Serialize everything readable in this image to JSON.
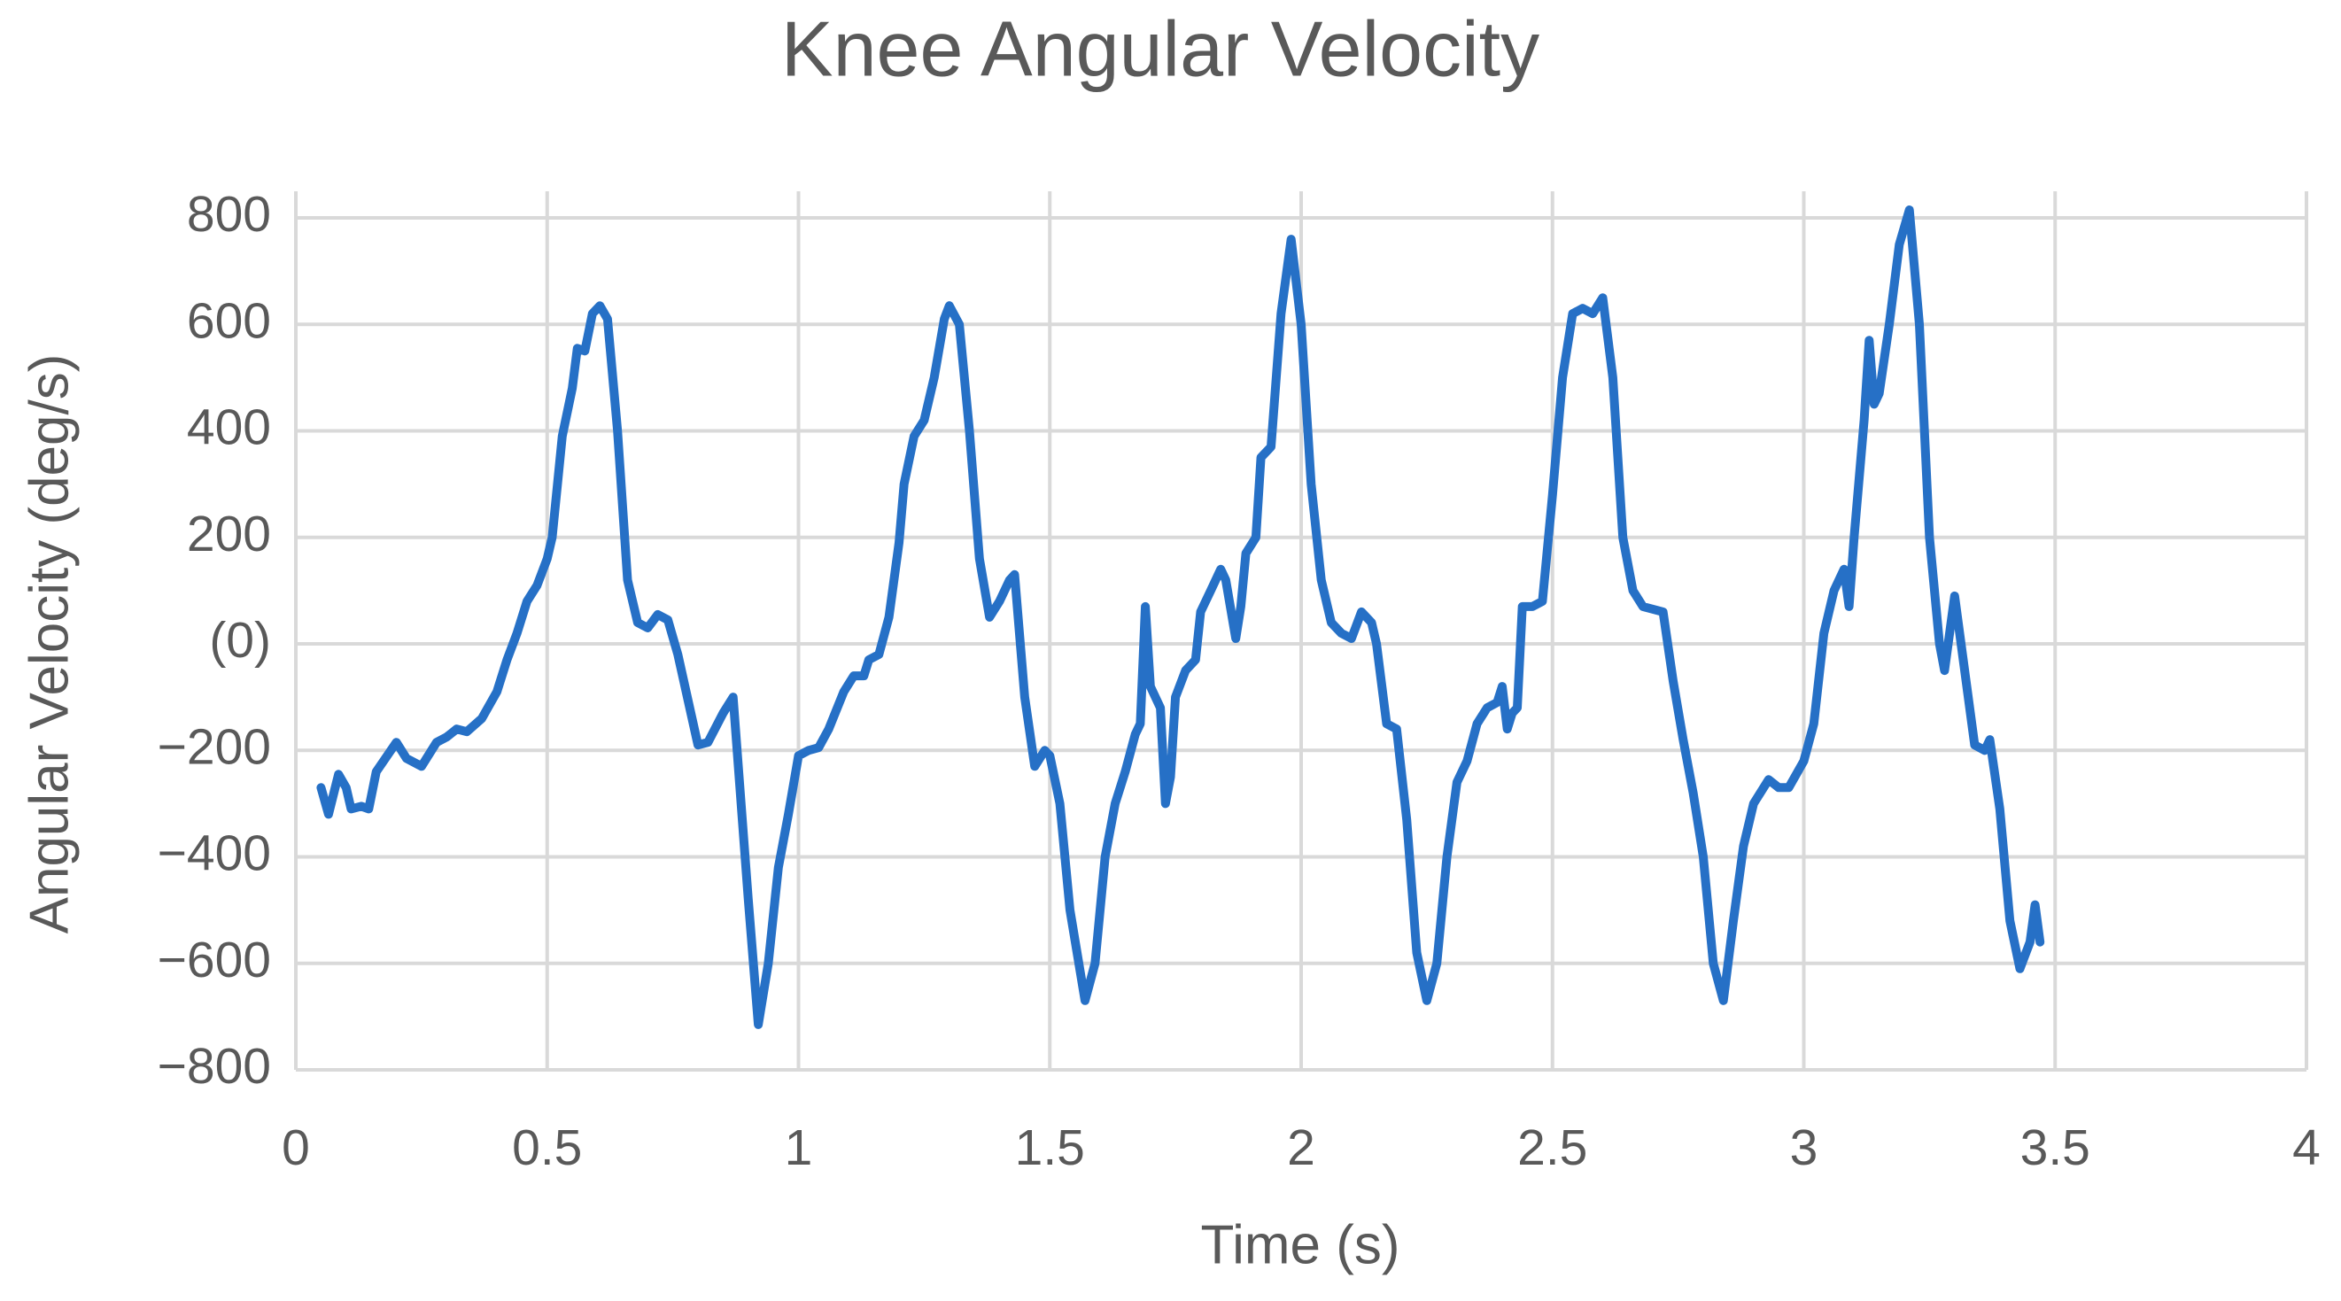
{
  "chart_data": {
    "type": "line",
    "title": "Knee Angular Velocity",
    "x_label": "Time (s)",
    "y_label": "Angular Velocity (deg/s)",
    "xlim": [
      0,
      4
    ],
    "xticks": [
      0,
      0.5,
      1,
      1.5,
      2,
      2.5,
      3,
      3.5,
      4
    ],
    "ylim": [
      -800,
      800
    ],
    "yticks": [
      {
        "value": -800,
        "label": "−800"
      },
      {
        "value": -600,
        "label": "−600"
      },
      {
        "value": -400,
        "label": "−400"
      },
      {
        "value": -200,
        "label": "−200"
      },
      {
        "value": 0,
        "label": "(0)"
      },
      200,
      400,
      600,
      800
    ],
    "grid": true,
    "series": [
      {
        "color": "#2670c6",
        "x": [
          0.05,
          0.065,
          0.085,
          0.1,
          0.11,
          0.13,
          0.145,
          0.16,
          0.2,
          0.22,
          0.25,
          0.28,
          0.3,
          0.32,
          0.34,
          0.37,
          0.4,
          0.42,
          0.44,
          0.46,
          0.48,
          0.5,
          0.51,
          0.53,
          0.55,
          0.56,
          0.575,
          0.59,
          0.605,
          0.62,
          0.64,
          0.66,
          0.68,
          0.7,
          0.72,
          0.74,
          0.76,
          0.8,
          0.82,
          0.85,
          0.87,
          0.9,
          0.92,
          0.94,
          0.96,
          0.98,
          1.0,
          1.02,
          1.04,
          1.06,
          1.09,
          1.11,
          1.13,
          1.14,
          1.16,
          1.18,
          1.2,
          1.21,
          1.23,
          1.25,
          1.27,
          1.29,
          1.3,
          1.32,
          1.34,
          1.36,
          1.38,
          1.4,
          1.42,
          1.43,
          1.45,
          1.47,
          1.49,
          1.5,
          1.52,
          1.54,
          1.57,
          1.59,
          1.61,
          1.63,
          1.65,
          1.67,
          1.68,
          1.69,
          1.7,
          1.72,
          1.73,
          1.74,
          1.75,
          1.77,
          1.79,
          1.8,
          1.82,
          1.84,
          1.85,
          1.87,
          1.88,
          1.89,
          1.91,
          1.92,
          1.94,
          1.96,
          1.98,
          2.0,
          2.02,
          2.04,
          2.06,
          2.08,
          2.1,
          2.12,
          2.14,
          2.15,
          2.17,
          2.19,
          2.21,
          2.23,
          2.25,
          2.27,
          2.29,
          2.31,
          2.33,
          2.35,
          2.37,
          2.39,
          2.4,
          2.41,
          2.42,
          2.43,
          2.44,
          2.46,
          2.48,
          2.5,
          2.52,
          2.54,
          2.56,
          2.58,
          2.6,
          2.62,
          2.64,
          2.66,
          2.68,
          2.7,
          2.72,
          2.74,
          2.76,
          2.78,
          2.8,
          2.82,
          2.84,
          2.86,
          2.88,
          2.9,
          2.93,
          2.95,
          2.97,
          3.0,
          3.02,
          3.04,
          3.06,
          3.08,
          3.09,
          3.1,
          3.12,
          3.13,
          3.14,
          3.15,
          3.17,
          3.19,
          3.21,
          3.23,
          3.25,
          3.27,
          3.28,
          3.3,
          3.32,
          3.34,
          3.36,
          3.37,
          3.39,
          3.41,
          3.43,
          3.45,
          3.46,
          3.47
        ],
        "values": [
          -270,
          -320,
          -245,
          -270,
          -310,
          -305,
          -310,
          -240,
          -185,
          -215,
          -230,
          -185,
          -175,
          -160,
          -165,
          -140,
          -90,
          -30,
          20,
          80,
          110,
          160,
          200,
          390,
          480,
          555,
          550,
          620,
          635,
          610,
          400,
          120,
          40,
          30,
          55,
          45,
          -20,
          -190,
          -185,
          -130,
          -100,
          -480,
          -715,
          -600,
          -420,
          -320,
          -210,
          -200,
          -195,
          -160,
          -90,
          -60,
          -60,
          -30,
          -20,
          50,
          190,
          300,
          390,
          420,
          500,
          610,
          635,
          600,
          400,
          160,
          50,
          80,
          120,
          130,
          -100,
          -230,
          -200,
          -210,
          -300,
          -500,
          -670,
          -600,
          -400,
          -300,
          -240,
          -170,
          -150,
          70,
          -80,
          -120,
          -300,
          -250,
          -100,
          -50,
          -30,
          60,
          100,
          140,
          120,
          10,
          70,
          170,
          200,
          350,
          370,
          620,
          760,
          600,
          300,
          120,
          40,
          20,
          10,
          60,
          40,
          0,
          -150,
          -160,
          -330,
          -580,
          -670,
          -600,
          -400,
          -260,
          -220,
          -150,
          -120,
          -110,
          -80,
          -160,
          -130,
          -120,
          70,
          70,
          80,
          280,
          500,
          620,
          630,
          620,
          650,
          500,
          200,
          100,
          70,
          65,
          60,
          -70,
          -180,
          -280,
          -400,
          -600,
          -670,
          -520,
          -380,
          -300,
          -255,
          -270,
          -270,
          -220,
          -150,
          20,
          100,
          140,
          70,
          200,
          420,
          570,
          450,
          470,
          600,
          750,
          815,
          600,
          200,
          0,
          -50,
          90,
          -50,
          -190,
          -200,
          -180,
          -310,
          -520,
          -610,
          -560,
          -490,
          -560
        ]
      }
    ]
  }
}
